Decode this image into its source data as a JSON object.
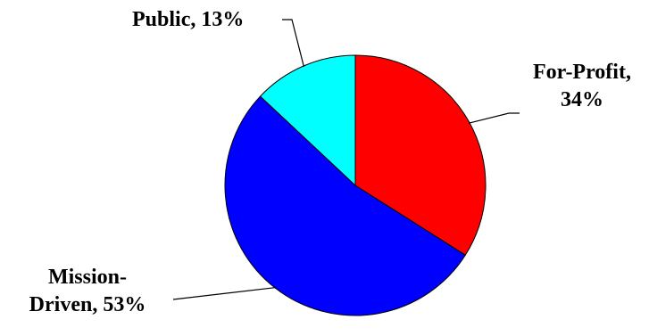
{
  "chart_data": {
    "type": "pie",
    "title": "",
    "series": [
      {
        "name": "",
        "slices": [
          {
            "label": "For-Profit",
            "value": 34,
            "display": "34%",
            "color": "#FF0000"
          },
          {
            "label": "Mission-Driven",
            "value": 53,
            "display": "53%",
            "color": "#0000FF"
          },
          {
            "label": "Public",
            "value": 13,
            "display": "13%",
            "color": "#00FFFF"
          }
        ]
      }
    ],
    "start_angle_deg": 0,
    "direction": "clockwise",
    "legend": "none",
    "slice_outline_color": "#000000"
  },
  "labels": {
    "public": "Public, 13%",
    "forprofit_line1": "For-Profit,",
    "forprofit_line2": "34%",
    "mission_line1": "Mission-",
    "mission_line2": "Driven, 53%"
  }
}
